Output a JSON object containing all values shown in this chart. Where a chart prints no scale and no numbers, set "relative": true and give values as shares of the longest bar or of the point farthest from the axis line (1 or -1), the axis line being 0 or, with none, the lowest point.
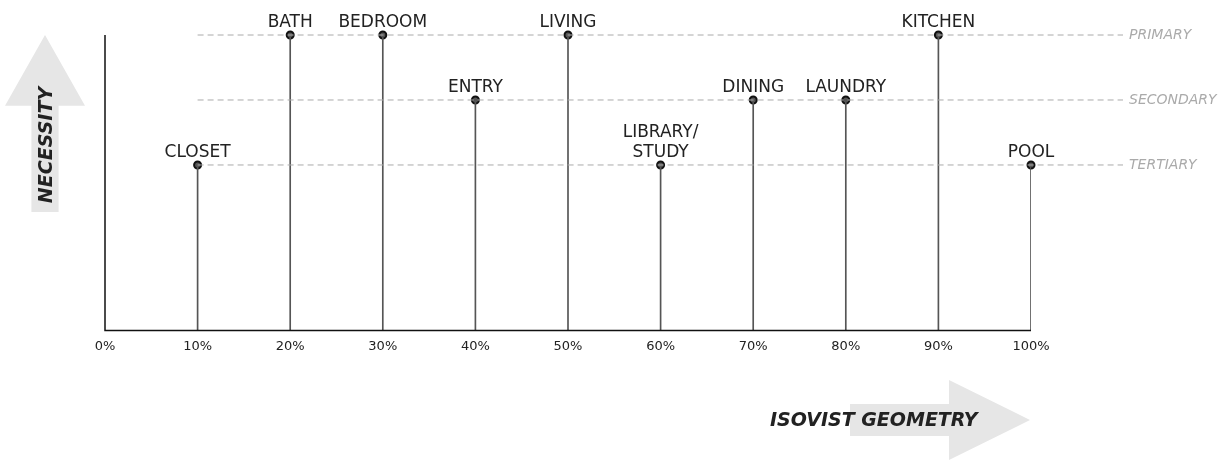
{
  "chart_data": {
    "type": "lollipop",
    "xlabel": "ISOVIST GEOMETRY",
    "ylabel": "NECESSITY",
    "relative": true,
    "x": [
      10,
      20,
      30,
      40,
      50,
      60,
      70,
      80,
      90,
      100
    ],
    "values": [
      0.56,
      1,
      1,
      0.78,
      1,
      0.56,
      0.78,
      0.78,
      1,
      0.56
    ],
    "color": "#555555",
    "marker": "circle",
    "grid": false,
    "legend": false,
    "xlim": [
      0,
      100
    ],
    "xticks": [
      {
        "value": 0,
        "label": "0%"
      },
      {
        "value": 10,
        "label": "10%"
      },
      {
        "value": 20,
        "label": "20%"
      },
      {
        "value": 30,
        "label": "30%"
      },
      {
        "value": 40,
        "label": "40%"
      },
      {
        "value": 50,
        "label": "50%"
      },
      {
        "value": 60,
        "label": "60%"
      },
      {
        "value": 70,
        "label": "70%"
      },
      {
        "value": 80,
        "label": "80%"
      },
      {
        "value": 90,
        "label": "90%"
      },
      {
        "value": 100,
        "label": "100%"
      }
    ],
    "ref_lines": [
      {
        "axis": "y",
        "value": 1,
        "label": "PRIMARY",
        "color": "#aaaaaa",
        "line_style": "dashed"
      },
      {
        "axis": "y",
        "value": 0.78,
        "label": "SECONDARY",
        "color": "#aaaaaa",
        "line_style": "dashed"
      },
      {
        "axis": "y",
        "value": 0.56,
        "label": "TERTIARY",
        "color": "#aaaaaa",
        "line_style": "dashed"
      }
    ],
    "annotations": [
      {
        "text": "CLOSET",
        "x": 10,
        "y": 0.56
      },
      {
        "text": "BATH",
        "x": 20,
        "y": 1
      },
      {
        "text": "BEDROOM",
        "x": 30,
        "y": 1
      },
      {
        "text": "ENTRY",
        "x": 40,
        "y": 0.78
      },
      {
        "text": "LIVING",
        "x": 50,
        "y": 1
      },
      {
        "text": "LIBRARY/\nSTUDY",
        "x": 60,
        "y": 0.56
      },
      {
        "text": "DINING",
        "x": 70,
        "y": 0.78
      },
      {
        "text": "LAUNDRY",
        "x": 80,
        "y": 0.78
      },
      {
        "text": "KITCHEN",
        "x": 90,
        "y": 1
      },
      {
        "text": "POOL",
        "x": 100,
        "y": 0.56
      }
    ]
  }
}
